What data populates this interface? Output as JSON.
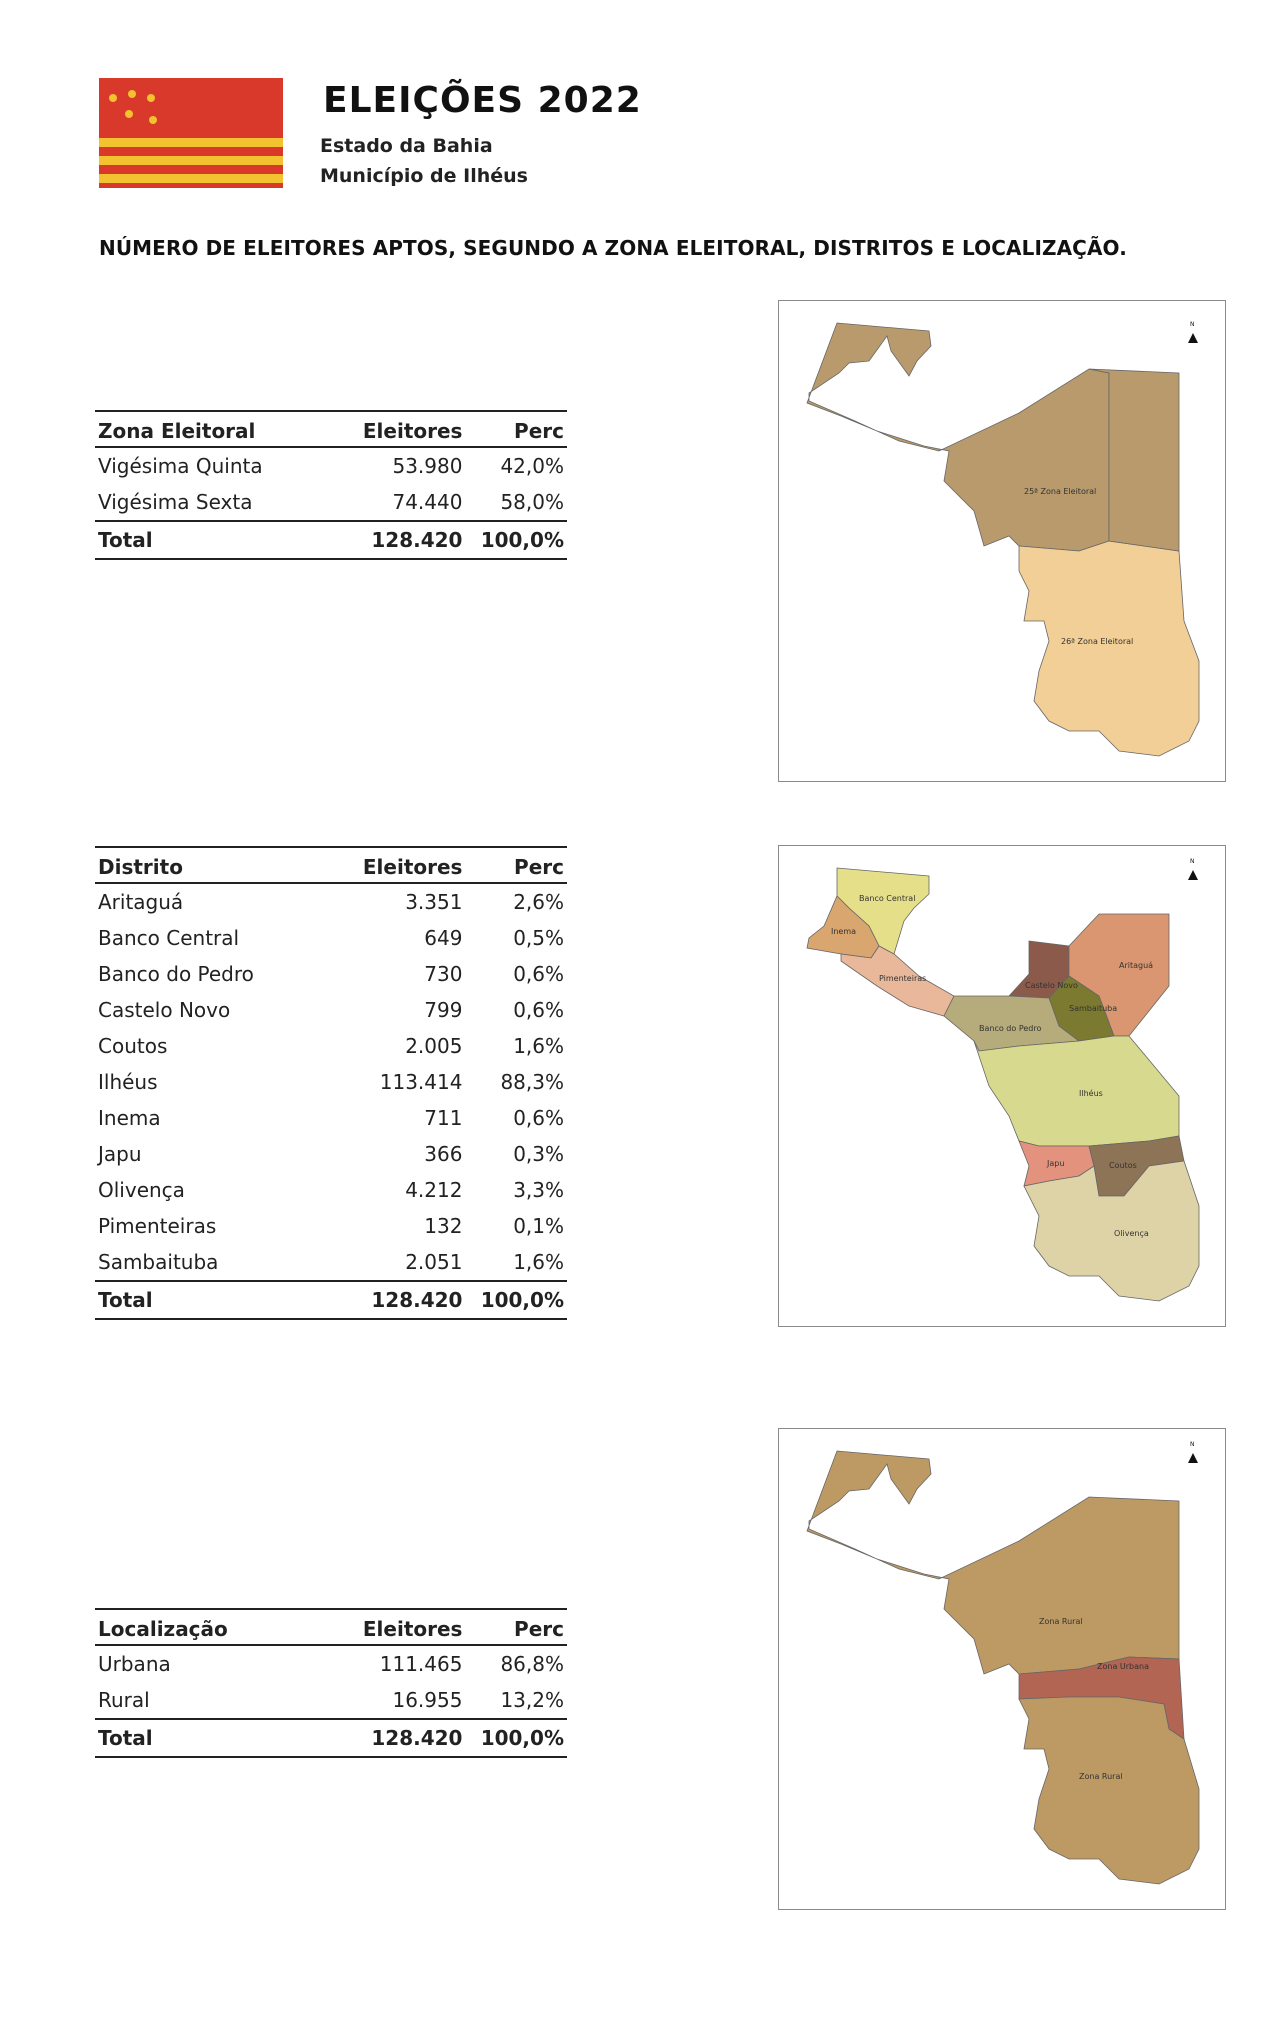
{
  "header": {
    "title": "ELEIÇÕES 2022",
    "state": "Estado da Bahia",
    "municipality": "Município de Ilhéus",
    "flag_colors": [
      "#d8392a",
      "#f2c230"
    ]
  },
  "headline": "NÚMERO DE ELEITORES APTOS, SEGUNDO A ZONA ELEITORAL, DISTRITOS E LOCALIZAÇÃO.",
  "zonas": {
    "headers": [
      "Zona Eleitoral",
      "Eleitores",
      "Perc"
    ],
    "rows": [
      {
        "name": "Vigésima Quinta",
        "eleitores": "53.980",
        "perc": "42,0%"
      },
      {
        "name": "Vigésima Sexta",
        "eleitores": "74.440",
        "perc": "58,0%"
      }
    ],
    "total": {
      "name": "Total",
      "eleitores": "128.420",
      "perc": "100,0%"
    }
  },
  "distritos": {
    "headers": [
      "Distrito",
      "Eleitores",
      "Perc"
    ],
    "rows": [
      {
        "name": "Aritaguá",
        "eleitores": "3.351",
        "perc": "2,6%"
      },
      {
        "name": "Banco Central",
        "eleitores": "649",
        "perc": "0,5%"
      },
      {
        "name": "Banco do Pedro",
        "eleitores": "730",
        "perc": "0,6%"
      },
      {
        "name": "Castelo Novo",
        "eleitores": "799",
        "perc": "0,6%"
      },
      {
        "name": "Coutos",
        "eleitores": "2.005",
        "perc": "1,6%"
      },
      {
        "name": "Ilhéus",
        "eleitores": "113.414",
        "perc": "88,3%"
      },
      {
        "name": "Inema",
        "eleitores": "711",
        "perc": "0,6%"
      },
      {
        "name": "Japu",
        "eleitores": "366",
        "perc": "0,3%"
      },
      {
        "name": "Olivença",
        "eleitores": "4.212",
        "perc": "3,3%"
      },
      {
        "name": "Pimenteiras",
        "eleitores": "132",
        "perc": "0,1%"
      },
      {
        "name": "Sambaituba",
        "eleitores": "2.051",
        "perc": "1,6%"
      }
    ],
    "total": {
      "name": "Total",
      "eleitores": "128.420",
      "perc": "100,0%"
    }
  },
  "localizacao": {
    "headers": [
      "Localização",
      "Eleitores",
      "Perc"
    ],
    "rows": [
      {
        "name": "Urbana",
        "eleitores": "111.465",
        "perc": "86,8%"
      },
      {
        "name": "Rural",
        "eleitores": "16.955",
        "perc": "13,2%"
      }
    ],
    "total": {
      "name": "Total",
      "eleitores": "128.420",
      "perc": "100,0%"
    }
  },
  "maps": {
    "zonas": {
      "labels": [
        "25ª Zona Eleitoral",
        "26ª Zona Eleitoral"
      ],
      "colors": [
        "#b89a6c",
        "#f2cf96"
      ]
    },
    "distritos": {
      "labels": [
        "Banco Central",
        "Inema",
        "Pimenteiras",
        "Castelo Novo",
        "Aritaguá",
        "Sambaituba",
        "Banco do Pedro",
        "Ilhéus",
        "Japu",
        "Coutos",
        "Olivença"
      ],
      "colors": [
        "#e6df8a",
        "#d8a66e",
        "#e9b89a",
        "#8b5a4a",
        "#d99670",
        "#7b7a30",
        "#b6ab7a",
        "#d7d98e",
        "#e3927e",
        "#8e7456",
        "#ddd3a6"
      ]
    },
    "localizacao": {
      "labels": [
        "Zona Rural",
        "Zona Urbana",
        "Zona Rural"
      ],
      "colors": [
        "#bd9a64",
        "#b26552"
      ]
    },
    "north_icon": "north-arrow-icon"
  }
}
